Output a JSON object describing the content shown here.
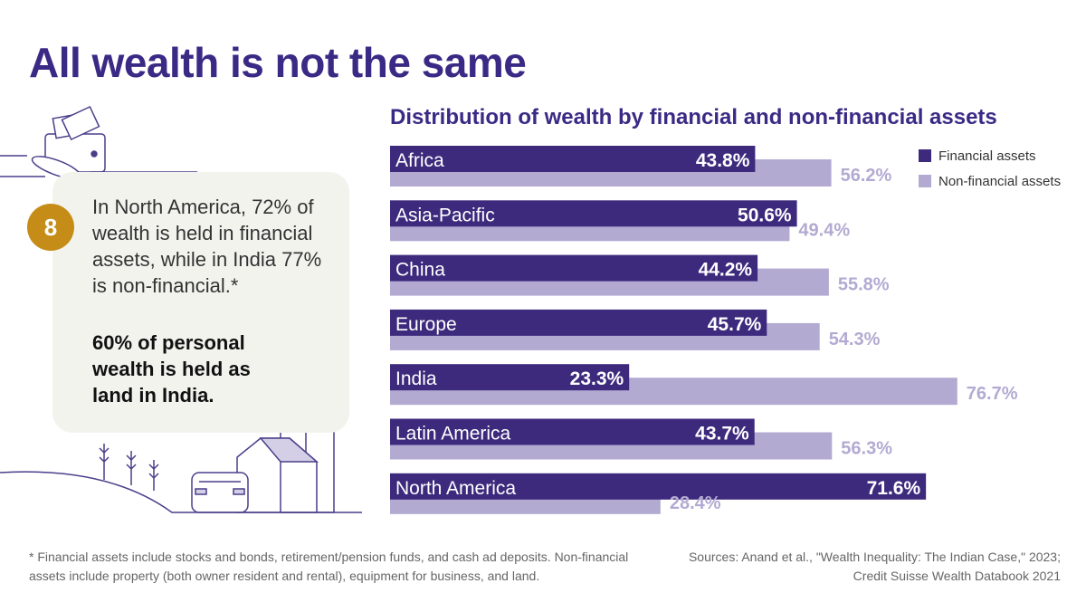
{
  "title": "All wealth is not the same",
  "callout": {
    "number": "8",
    "text": "In North America, 72% of wealth is held in financial assets, while in India 77% is non-financial.*",
    "highlight": "60% of personal wealth is held as land in India."
  },
  "chart_data": {
    "type": "bar",
    "title": "Distribution of wealth by financial and non-financial assets",
    "categories": [
      "Africa",
      "Asia-Pacific",
      "China",
      "Europe",
      "India",
      "Latin America",
      "North America"
    ],
    "series": [
      {
        "name": "Financial assets",
        "color": "#3d2a7d",
        "values": [
          43.8,
          50.6,
          44.2,
          45.7,
          23.3,
          43.7,
          71.6
        ]
      },
      {
        "name": "Non-financial assets",
        "color": "#b3aad2",
        "values": [
          56.2,
          49.4,
          55.8,
          54.3,
          76.7,
          56.3,
          28.4
        ]
      }
    ],
    "unit": "%",
    "legend_position": "top-right",
    "grid": false
  },
  "footnote": "* Financial assets include stocks and bonds, retirement/pension funds, and cash ad deposits. Non-financial assets include property (both owner resident and rental), equipment for business, and land.",
  "sources": "Sources: Anand et al., \"Wealth Inequality: The Indian Case,\" 2023; Credit Suisse Wealth Databook 2021"
}
